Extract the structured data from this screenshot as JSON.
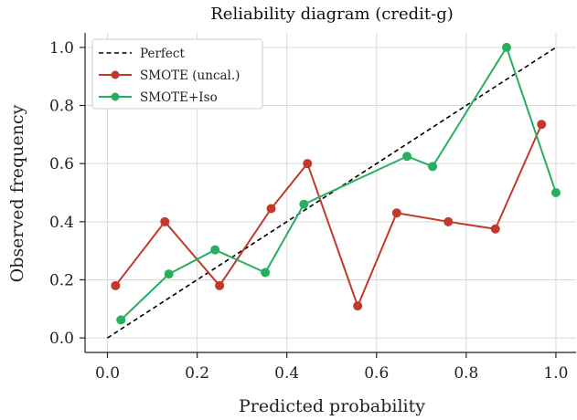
{
  "chart_data": {
    "type": "line",
    "title": "Reliability diagram (credit-g)",
    "xlabel": "Predicted probability",
    "ylabel": "Observed frequency",
    "xlim": [
      -0.05,
      1.045
    ],
    "ylim": [
      -0.05,
      1.05
    ],
    "xticks": [
      0.0,
      0.2,
      0.4,
      0.6,
      0.8,
      1.0
    ],
    "yticks": [
      0.0,
      0.2,
      0.4,
      0.6,
      0.8,
      1.0
    ],
    "xtick_labels": [
      "0.0",
      "0.2",
      "0.4",
      "0.6",
      "0.8",
      "1.0"
    ],
    "ytick_labels": [
      "0.0",
      "0.2",
      "0.4",
      "0.6",
      "0.8",
      "1.0"
    ],
    "grid": true,
    "legend_position": "top-left",
    "series": [
      {
        "name": "Perfect",
        "style": "dashed",
        "color": "#000000",
        "markers": false,
        "x": [
          0.0,
          1.0
        ],
        "y": [
          0.0,
          1.0
        ]
      },
      {
        "name": "SMOTE (uncal.)",
        "style": "solid",
        "color": "#c0392b",
        "markers": true,
        "x": [
          0.018,
          0.128,
          0.25,
          0.365,
          0.446,
          0.558,
          0.645,
          0.76,
          0.865,
          0.968
        ],
        "y": [
          0.18,
          0.4,
          0.18,
          0.445,
          0.6,
          0.11,
          0.43,
          0.4,
          0.375,
          0.735
        ]
      },
      {
        "name": "SMOTE+Iso",
        "style": "solid",
        "color": "#27ae60",
        "markers": true,
        "x": [
          0.03,
          0.137,
          0.24,
          0.352,
          0.438,
          0.668,
          0.725,
          0.89,
          1.0
        ],
        "y": [
          0.062,
          0.22,
          0.303,
          0.225,
          0.46,
          0.625,
          0.59,
          1.0,
          0.5
        ]
      }
    ]
  }
}
